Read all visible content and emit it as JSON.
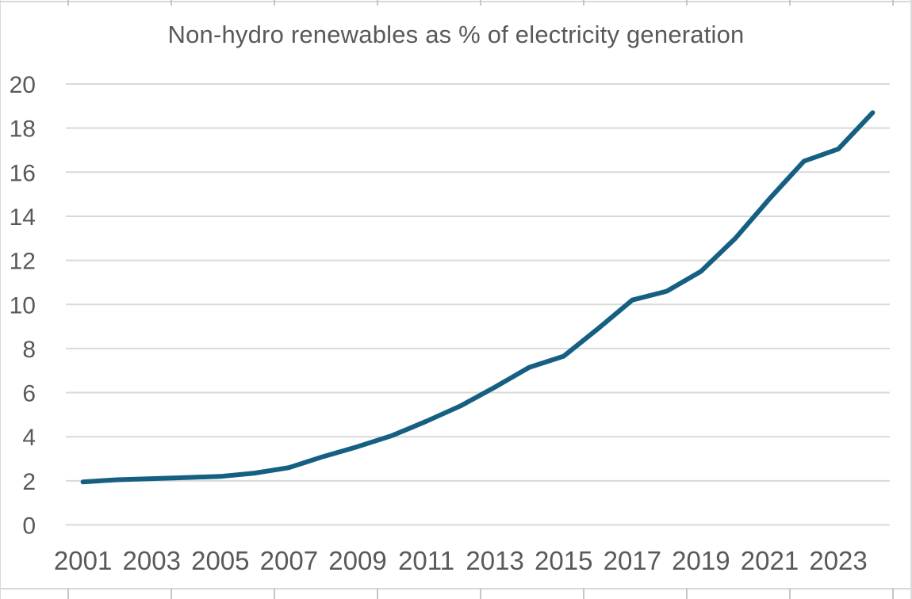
{
  "chart_data": {
    "type": "line",
    "title": "Non-hydro renewables as % of electricity generation",
    "x": [
      2001,
      2002,
      2003,
      2004,
      2005,
      2006,
      2007,
      2008,
      2009,
      2010,
      2011,
      2012,
      2013,
      2014,
      2015,
      2016,
      2017,
      2018,
      2019,
      2020,
      2021,
      2022,
      2023,
      2024
    ],
    "series": [
      {
        "name": "Non-hydro renewables share of electricity generation (%)",
        "values": [
          1.95,
          2.05,
          2.1,
          2.15,
          2.2,
          2.35,
          2.6,
          3.1,
          3.55,
          4.05,
          4.7,
          5.4,
          6.25,
          7.15,
          7.65,
          8.9,
          10.2,
          10.6,
          11.5,
          13.0,
          14.8,
          16.5,
          17.05,
          18.7
        ]
      }
    ],
    "xlabel": "",
    "ylabel": "",
    "ylim": [
      0,
      20
    ],
    "ytick_step": 2,
    "ytick_labels": [
      "0",
      "2",
      "4",
      "6",
      "8",
      "10",
      "12",
      "14",
      "16",
      "18",
      "20"
    ],
    "xtick_labels": [
      "2001",
      "2003",
      "2005",
      "2007",
      "2009",
      "2011",
      "2013",
      "2015",
      "2017",
      "2019",
      "2021",
      "2023"
    ],
    "grid": "horizontal",
    "legend": "none",
    "colors": {
      "line": "#156082",
      "gridline": "#d9d9d9",
      "text": "#595959",
      "background": "#ffffff",
      "worksheet_edge": "#d9d9d9"
    }
  }
}
